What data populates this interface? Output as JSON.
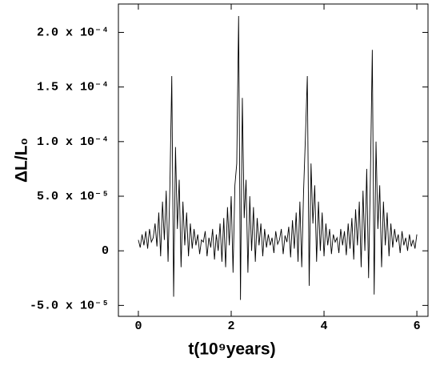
{
  "chart_data": {
    "type": "line",
    "xlabel": "t(10⁹years)",
    "ylabel": "ΔL/L₀",
    "color": "#000000",
    "x": [
      0,
      0.04,
      0.08,
      0.12,
      0.16,
      0.2,
      0.24,
      0.28,
      0.32,
      0.36,
      0.4,
      0.44,
      0.48,
      0.52,
      0.56,
      0.6,
      0.64,
      0.68,
      0.72,
      0.76,
      0.8,
      0.84,
      0.88,
      0.92,
      0.96,
      1,
      1.04,
      1.08,
      1.12,
      1.16,
      1.2,
      1.24,
      1.28,
      1.32,
      1.36,
      1.4,
      1.44,
      1.48,
      1.52,
      1.56,
      1.6,
      1.64,
      1.68,
      1.72,
      1.76,
      1.8,
      1.84,
      1.88,
      1.92,
      1.96,
      2,
      2.04,
      2.08,
      2.12,
      2.16,
      2.2,
      2.24,
      2.28,
      2.32,
      2.36,
      2.4,
      2.44,
      2.48,
      2.52,
      2.56,
      2.6,
      2.64,
      2.68,
      2.72,
      2.76,
      2.8,
      2.84,
      2.88,
      2.92,
      2.96,
      3,
      3.04,
      3.08,
      3.12,
      3.16,
      3.2,
      3.24,
      3.28,
      3.32,
      3.36,
      3.4,
      3.44,
      3.48,
      3.52,
      3.56,
      3.6,
      3.64,
      3.68,
      3.72,
      3.76,
      3.8,
      3.84,
      3.88,
      3.92,
      3.96,
      4,
      4.04,
      4.08,
      4.12,
      4.16,
      4.2,
      4.24,
      4.28,
      4.32,
      4.36,
      4.4,
      4.44,
      4.48,
      4.52,
      4.56,
      4.6,
      4.64,
      4.68,
      4.72,
      4.76,
      4.8,
      4.84,
      4.88,
      4.92,
      4.96,
      5,
      5.04,
      5.08,
      5.12,
      5.16,
      5.2,
      5.24,
      5.28,
      5.32,
      5.36,
      5.4,
      5.44,
      5.48,
      5.52,
      5.56,
      5.6,
      5.64,
      5.68,
      5.72,
      5.76,
      5.8,
      5.84,
      5.88,
      5.92,
      5.96,
      6
    ],
    "values": [
      1e-05,
      3e-06,
      1.5e-05,
      5e-06,
      1.8e-05,
      2e-06,
      2e-05,
      8e-06,
      1.2e-05,
      2.5e-05,
      4e-06,
      3.5e-05,
      -5e-06,
      4.5e-05,
      1e-05,
      5.5e-05,
      -1e-05,
      6e-05,
      0.00016,
      -4.2e-05,
      9.5e-05,
      2e-05,
      6.5e-05,
      -1.5e-05,
      4.5e-05,
      5e-06,
      3.5e-05,
      -5e-06,
      2.5e-05,
      2e-06,
      2e-05,
      5e-06,
      1.5e-05,
      -3e-06,
      1e-05,
      8e-06,
      1.8e-05,
      -5e-06,
      1.2e-05,
      3e-06,
      2e-05,
      -8e-06,
      1.5e-05,
      0,
      2.5e-05,
      -1e-05,
      3e-05,
      -1.5e-05,
      4e-05,
      5e-06,
      5e-05,
      -2e-05,
      6e-05,
      8e-05,
      0.000215,
      -4.5e-05,
      0.00014,
      3e-05,
      6.5e-05,
      -2e-05,
      5e-05,
      0,
      4e-05,
      -1e-05,
      3e-05,
      5e-06,
      2.5e-05,
      -5e-06,
      2e-05,
      3e-06,
      1.5e-05,
      5e-06,
      1.2e-05,
      -2e-06,
      1.8e-05,
      6e-06,
      1e-05,
      2e-05,
      -3e-06,
      1.4e-05,
      8e-06,
      2.2e-05,
      -6e-06,
      2.8e-05,
      2e-06,
      3.5e-05,
      -1e-05,
      4.5e-05,
      -1.5e-05,
      5.5e-05,
      0.000105,
      0.00016,
      -3.2e-05,
      8e-05,
      2.5e-05,
      6e-05,
      -1e-05,
      4.5e-05,
      0,
      3.5e-05,
      -5e-06,
      2.5e-05,
      5e-06,
      2e-05,
      -3e-06,
      1.5e-05,
      8e-06,
      1.2e-05,
      -2e-06,
      2e-05,
      5e-06,
      1.8e-05,
      -4e-06,
      2.5e-05,
      2e-06,
      3e-05,
      -8e-06,
      3.8e-05,
      5e-06,
      4.5e-05,
      -1.5e-05,
      5.5e-05,
      0,
      7.5e-05,
      -2.5e-05,
      7e-05,
      0.000184,
      -4e-05,
      0.0001,
      2e-05,
      6e-05,
      -1.5e-05,
      4.5e-05,
      5e-06,
      3.5e-05,
      -5e-06,
      2.5e-05,
      3e-06,
      2e-05,
      8e-06,
      1.5e-05,
      -2e-06,
      1.8e-05,
      5e-06,
      1.2e-05,
      0,
      1.5e-05,
      4e-06,
      1e-05,
      2e-06,
      1.5e-05
    ],
    "xlim": [
      -0.43,
      6.24
    ],
    "ylim": [
      -6e-05,
      0.000226
    ],
    "xticks": [
      0,
      2,
      4,
      6
    ],
    "yticks": [
      {
        "value": -5e-05,
        "label": "-5.0 x 10⁻⁵"
      },
      0,
      {
        "value": 5e-05,
        "label": "5.0 x 10⁻⁵"
      },
      {
        "value": 0.0001,
        "label": "1.0 x 10⁻⁴"
      },
      {
        "value": 0.00015,
        "label": "1.5 x 10⁻⁴"
      },
      {
        "value": 0.0002,
        "label": "2.0 x 10⁻⁴"
      }
    ]
  }
}
